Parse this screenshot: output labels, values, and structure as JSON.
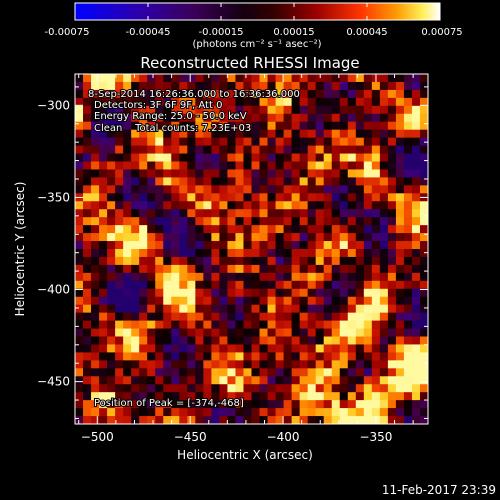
{
  "chart_data": {
    "type": "heatmap",
    "title": "Reconstructed RHESSI Image",
    "colorbar": {
      "min": -0.00075,
      "max": 0.00075,
      "tick_values": [
        -0.00075,
        -0.00045,
        -0.00015,
        0.00015,
        0.00045,
        0.00075
      ],
      "tick_labels": [
        "-0.00075",
        "-0.00045",
        "-0.00015",
        "0.00015",
        "0.00045",
        "0.00075"
      ],
      "colors": [
        "#0000ff",
        "#3a0066",
        "#1a0010",
        "#000000",
        "#8b0000",
        "#ff3300",
        "#ff9900",
        "#ffff66",
        "#ffffff"
      ],
      "unit_label": "(photons cm⁻² s⁻¹ asec⁻²)"
    },
    "xlabel": "Heliocentric X (arcsec)",
    "ylabel": "Heliocentric Y (arcsec)",
    "xlim": [
      -512,
      -322
    ],
    "ylim": [
      -473,
      -283
    ],
    "x_ticks": [
      -500,
      -450,
      -400,
      -350
    ],
    "y_ticks": [
      -450,
      -400,
      -350,
      -300
    ],
    "annotations": [
      "8-Sep-2014 16:26:36.000 to 16:36:36.000",
      "Detectors: 3F 6F 9F, Att 0",
      "Energy Range: 25.0 - 50.0 keV",
      "Clean    Total counts: 7.23E+03"
    ],
    "peak_label": "Position of Peak = [-374,-468]",
    "peak_position": [
      -374,
      -468
    ],
    "grid": false
  },
  "footer": {
    "timestamp": "11-Feb-2017 23:39"
  }
}
